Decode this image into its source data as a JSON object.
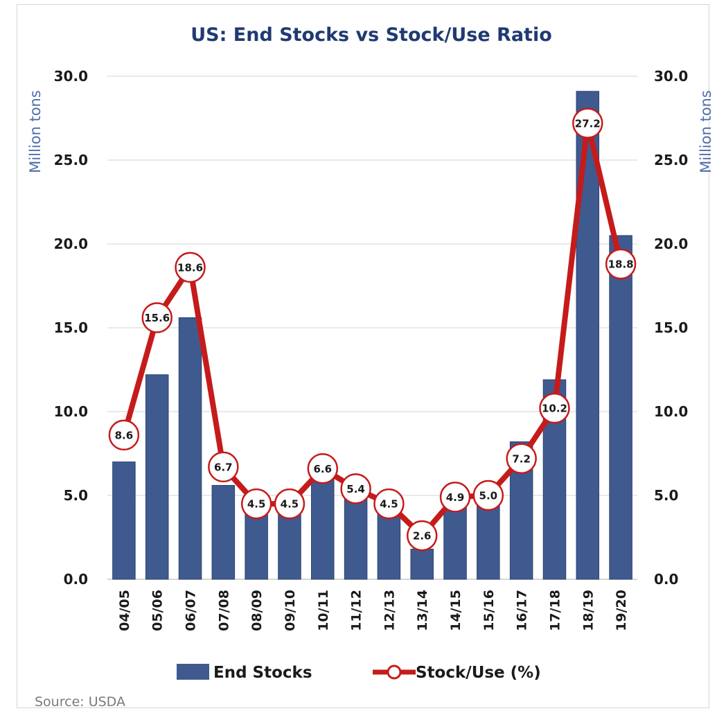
{
  "chart_data": {
    "type": "bar",
    "title": "US: End Stocks vs Stock/Use Ratio",
    "ylabel": "Million tons",
    "y2label": "Million tons",
    "ylim": [
      0,
      30
    ],
    "yticks": [
      "0.0",
      "5.0",
      "10.0",
      "15.0",
      "20.0",
      "25.0",
      "30.0"
    ],
    "grid": true,
    "legend_position": "bottom",
    "categories": [
      "04/05",
      "05/06",
      "06/07",
      "07/08",
      "08/09",
      "09/10",
      "10/11",
      "11/12",
      "12/13",
      "13/14",
      "14/15",
      "15/16",
      "16/17",
      "17/18",
      "18/19",
      "19/20"
    ],
    "series": [
      {
        "name": "End Stocks",
        "type": "bar",
        "color": "#3f5a8f",
        "values": [
          7.0,
          12.2,
          15.6,
          5.6,
          4.3,
          4.3,
          6.0,
          5.0,
          4.4,
          1.8,
          4.6,
          4.7,
          8.2,
          11.9,
          29.1,
          20.5
        ]
      },
      {
        "name": "Stock/Use (%)",
        "type": "line",
        "color": "#c51b1b",
        "values": [
          8.6,
          15.6,
          18.6,
          6.7,
          4.5,
          4.5,
          6.6,
          5.4,
          4.5,
          2.6,
          4.9,
          5.0,
          7.2,
          10.2,
          27.2,
          18.8
        ],
        "labels": [
          "8.6",
          "15.6",
          "18.6",
          "6.7",
          "4.5",
          "4.5",
          "6.6",
          "5.4",
          "4.5",
          "2.6",
          "4.9",
          "5.0",
          "7.2",
          "10.2",
          "27.2",
          "18.8"
        ]
      }
    ],
    "source": "Source: USDA"
  }
}
